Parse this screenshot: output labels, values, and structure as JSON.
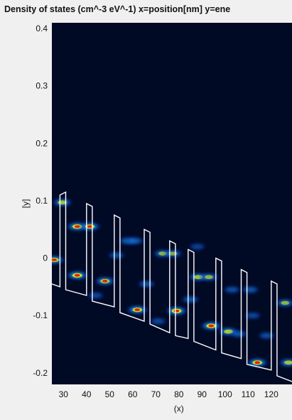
{
  "chart_data": {
    "type": "heatmap",
    "title": "Density of states (cm^-3 eV^-1)  x=position[nm]  y=ene",
    "xlabel": "(x)",
    "ylabel": "[y]",
    "xlim": [
      25,
      129
    ],
    "ylim": [
      -0.22,
      0.41
    ],
    "x_ticks": [
      30,
      40,
      50,
      60,
      70,
      80,
      90,
      100,
      110,
      120
    ],
    "y_ticks": [
      0.4,
      0.3,
      0.2,
      0.1,
      0,
      -0.1,
      -0.2
    ],
    "colormap": "jet",
    "background_color": "#000a25",
    "band_profile_color": "#ffffff",
    "band_profile": [
      [
        25,
        -0.045
      ],
      [
        28.5,
        -0.05
      ],
      [
        28.5,
        0.11
      ],
      [
        31,
        0.115
      ],
      [
        31,
        -0.055
      ],
      [
        40,
        -0.065
      ],
      [
        40,
        0.095
      ],
      [
        42.5,
        0.09
      ],
      [
        42.5,
        -0.075
      ],
      [
        52,
        -0.085
      ],
      [
        52,
        0.075
      ],
      [
        54.5,
        0.07
      ],
      [
        54.5,
        -0.095
      ],
      [
        65,
        -0.11
      ],
      [
        65,
        0.05
      ],
      [
        67.5,
        0.045
      ],
      [
        67.5,
        -0.115
      ],
      [
        76,
        -0.13
      ],
      [
        76,
        0.03
      ],
      [
        78.5,
        0.025
      ],
      [
        78.5,
        -0.135
      ],
      [
        84,
        -0.14
      ],
      [
        84,
        0.015
      ],
      [
        86.5,
        0.01
      ],
      [
        86.5,
        -0.145
      ],
      [
        96,
        -0.16
      ],
      [
        96,
        0.0
      ],
      [
        98.5,
        -0.005
      ],
      [
        98.5,
        -0.165
      ],
      [
        107,
        -0.175
      ],
      [
        107,
        -0.02
      ],
      [
        109.5,
        -0.025
      ],
      [
        109.5,
        -0.185
      ],
      [
        120,
        -0.195
      ],
      [
        120,
        -0.04
      ],
      [
        122.5,
        -0.045
      ],
      [
        122.5,
        -0.205
      ],
      [
        129,
        -0.215
      ]
    ],
    "hotspots": [
      {
        "x": 26,
        "y": -0.003,
        "intensity": 0.85
      },
      {
        "x": 29.5,
        "y": 0.097,
        "intensity": 0.7
      },
      {
        "x": 36,
        "y": 0.055,
        "intensity": 0.9
      },
      {
        "x": 41.5,
        "y": 0.055,
        "intensity": 0.85
      },
      {
        "x": 36,
        "y": -0.03,
        "intensity": 0.95
      },
      {
        "x": 48,
        "y": -0.04,
        "intensity": 0.8
      },
      {
        "x": 58,
        "y": 0.03,
        "intensity": 0.5
      },
      {
        "x": 61,
        "y": 0.03,
        "intensity": 0.45
      },
      {
        "x": 53,
        "y": 0.005,
        "intensity": 0.35
      },
      {
        "x": 62,
        "y": -0.09,
        "intensity": 0.9
      },
      {
        "x": 66,
        "y": -0.045,
        "intensity": 0.4
      },
      {
        "x": 73,
        "y": 0.008,
        "intensity": 0.6
      },
      {
        "x": 77.5,
        "y": 0.008,
        "intensity": 0.55
      },
      {
        "x": 79,
        "y": -0.092,
        "intensity": 0.95
      },
      {
        "x": 85,
        "y": -0.072,
        "intensity": 0.45
      },
      {
        "x": 88.5,
        "y": -0.033,
        "intensity": 0.7
      },
      {
        "x": 93,
        "y": -0.033,
        "intensity": 0.6
      },
      {
        "x": 94,
        "y": -0.118,
        "intensity": 0.9
      },
      {
        "x": 101.5,
        "y": -0.128,
        "intensity": 0.75
      },
      {
        "x": 106,
        "y": -0.132,
        "intensity": 0.4
      },
      {
        "x": 103,
        "y": -0.055,
        "intensity": 0.35
      },
      {
        "x": 111,
        "y": -0.055,
        "intensity": 0.4
      },
      {
        "x": 114,
        "y": -0.182,
        "intensity": 0.9
      },
      {
        "x": 118,
        "y": -0.135,
        "intensity": 0.35
      },
      {
        "x": 126,
        "y": -0.078,
        "intensity": 0.6
      },
      {
        "x": 127.5,
        "y": -0.182,
        "intensity": 0.7
      },
      {
        "x": 44,
        "y": -0.065,
        "intensity": 0.3
      },
      {
        "x": 71,
        "y": -0.11,
        "intensity": 0.3
      },
      {
        "x": 88,
        "y": 0.02,
        "intensity": 0.25
      },
      {
        "x": 112,
        "y": -0.1,
        "intensity": 0.3
      }
    ]
  }
}
